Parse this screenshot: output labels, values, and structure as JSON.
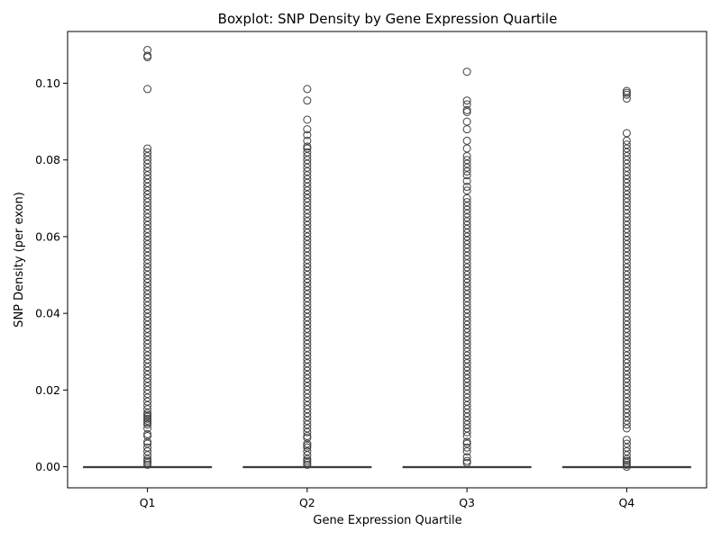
{
  "chart_data": {
    "type": "boxplot",
    "title": "Boxplot: SNP Density by Gene Expression Quartile",
    "xlabel": "Gene Expression Quartile",
    "ylabel": "SNP Density (per exon)",
    "categories": [
      "Q1",
      "Q2",
      "Q3",
      "Q4"
    ],
    "ylim": [
      -0.0055,
      0.1135
    ],
    "yticks": [
      0.0,
      0.02,
      0.04,
      0.06,
      0.08,
      0.1
    ],
    "ytick_labels": [
      "0.00",
      "0.02",
      "0.04",
      "0.06",
      "0.08",
      "0.10"
    ],
    "grid": false,
    "legend": "none",
    "colors": {
      "box_edge": "#3f3f3f",
      "outlier_edge": "#3f3f3f"
    },
    "boxes": [
      {
        "category": "Q1",
        "min": 0.0,
        "q1": 0.0,
        "median": 0.0,
        "q3": 0.0,
        "max": 0.0
      },
      {
        "category": "Q2",
        "min": 0.0,
        "q1": 0.0,
        "median": 0.0,
        "q3": 0.0,
        "max": 0.0
      },
      {
        "category": "Q3",
        "min": 0.0,
        "q1": 0.0,
        "median": 0.0,
        "q3": 0.0,
        "max": 0.0
      },
      {
        "category": "Q4",
        "min": 0.0,
        "q1": 0.0,
        "median": 0.0,
        "q3": 0.0,
        "max": 0.0
      }
    ],
    "outliers": [
      {
        "category": "Q1",
        "values": [
          0.0005,
          0.001,
          0.0015,
          0.002,
          0.003,
          0.004,
          0.005,
          0.006,
          0.0065,
          0.008,
          0.0085,
          0.01,
          0.011,
          0.0115,
          0.012,
          0.0125,
          0.013,
          0.0135,
          0.014,
          0.015,
          0.016,
          0.017,
          0.018,
          0.019,
          0.02,
          0.021,
          0.022,
          0.023,
          0.024,
          0.025,
          0.026,
          0.027,
          0.028,
          0.029,
          0.03,
          0.031,
          0.032,
          0.033,
          0.034,
          0.035,
          0.036,
          0.037,
          0.038,
          0.039,
          0.04,
          0.041,
          0.042,
          0.043,
          0.044,
          0.045,
          0.046,
          0.047,
          0.048,
          0.049,
          0.05,
          0.051,
          0.052,
          0.053,
          0.054,
          0.055,
          0.056,
          0.057,
          0.058,
          0.059,
          0.06,
          0.061,
          0.062,
          0.063,
          0.064,
          0.065,
          0.066,
          0.067,
          0.068,
          0.069,
          0.07,
          0.071,
          0.072,
          0.073,
          0.074,
          0.075,
          0.076,
          0.077,
          0.078,
          0.079,
          0.08,
          0.081,
          0.082,
          0.083,
          0.0985,
          0.1068,
          0.1072,
          0.1087
        ]
      },
      {
        "category": "Q2",
        "values": [
          0.0005,
          0.001,
          0.0015,
          0.002,
          0.003,
          0.004,
          0.005,
          0.0055,
          0.006,
          0.0075,
          0.008,
          0.009,
          0.01,
          0.011,
          0.012,
          0.013,
          0.014,
          0.015,
          0.016,
          0.017,
          0.018,
          0.019,
          0.02,
          0.021,
          0.022,
          0.023,
          0.024,
          0.025,
          0.026,
          0.027,
          0.028,
          0.029,
          0.03,
          0.031,
          0.032,
          0.033,
          0.034,
          0.035,
          0.036,
          0.037,
          0.038,
          0.039,
          0.04,
          0.041,
          0.042,
          0.043,
          0.044,
          0.045,
          0.046,
          0.047,
          0.048,
          0.049,
          0.05,
          0.051,
          0.052,
          0.053,
          0.054,
          0.055,
          0.056,
          0.057,
          0.058,
          0.059,
          0.06,
          0.061,
          0.062,
          0.063,
          0.064,
          0.065,
          0.066,
          0.067,
          0.068,
          0.069,
          0.07,
          0.071,
          0.072,
          0.073,
          0.074,
          0.075,
          0.076,
          0.077,
          0.078,
          0.079,
          0.08,
          0.081,
          0.082,
          0.083,
          0.0835,
          0.085,
          0.0865,
          0.088,
          0.0905,
          0.0955,
          0.0985
        ]
      },
      {
        "category": "Q3",
        "values": [
          0.001,
          0.0015,
          0.0025,
          0.004,
          0.005,
          0.006,
          0.0065,
          0.008,
          0.009,
          0.01,
          0.011,
          0.012,
          0.013,
          0.014,
          0.015,
          0.016,
          0.017,
          0.018,
          0.019,
          0.02,
          0.021,
          0.022,
          0.023,
          0.024,
          0.025,
          0.026,
          0.027,
          0.028,
          0.029,
          0.03,
          0.031,
          0.032,
          0.033,
          0.034,
          0.035,
          0.036,
          0.037,
          0.038,
          0.039,
          0.04,
          0.041,
          0.042,
          0.043,
          0.044,
          0.045,
          0.046,
          0.047,
          0.048,
          0.049,
          0.05,
          0.051,
          0.052,
          0.053,
          0.054,
          0.055,
          0.056,
          0.057,
          0.058,
          0.059,
          0.06,
          0.061,
          0.062,
          0.063,
          0.064,
          0.065,
          0.066,
          0.067,
          0.068,
          0.069,
          0.07,
          0.072,
          0.073,
          0.0745,
          0.076,
          0.077,
          0.078,
          0.079,
          0.08,
          0.081,
          0.083,
          0.085,
          0.088,
          0.09,
          0.0925,
          0.093,
          0.0945,
          0.0955,
          0.103
        ]
      },
      {
        "category": "Q4",
        "values": [
          0.0,
          0.0005,
          0.001,
          0.0015,
          0.002,
          0.003,
          0.004,
          0.005,
          0.006,
          0.007,
          0.01,
          0.011,
          0.012,
          0.013,
          0.014,
          0.015,
          0.016,
          0.017,
          0.018,
          0.019,
          0.02,
          0.021,
          0.022,
          0.023,
          0.024,
          0.025,
          0.026,
          0.027,
          0.028,
          0.029,
          0.03,
          0.031,
          0.032,
          0.033,
          0.034,
          0.035,
          0.036,
          0.037,
          0.038,
          0.039,
          0.04,
          0.041,
          0.042,
          0.043,
          0.044,
          0.045,
          0.046,
          0.047,
          0.048,
          0.049,
          0.05,
          0.051,
          0.052,
          0.053,
          0.054,
          0.055,
          0.056,
          0.057,
          0.058,
          0.059,
          0.06,
          0.061,
          0.062,
          0.063,
          0.064,
          0.065,
          0.066,
          0.067,
          0.068,
          0.069,
          0.07,
          0.071,
          0.072,
          0.073,
          0.074,
          0.075,
          0.076,
          0.077,
          0.078,
          0.079,
          0.08,
          0.081,
          0.082,
          0.083,
          0.084,
          0.085,
          0.087,
          0.096,
          0.097,
          0.0975,
          0.098
        ]
      }
    ]
  }
}
